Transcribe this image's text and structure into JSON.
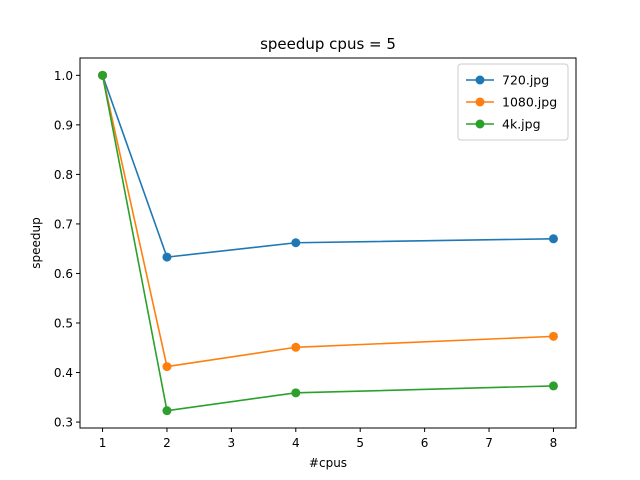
{
  "chart_data": {
    "type": "line",
    "title": "speedup cpus = 5",
    "xlabel": "#cpus",
    "ylabel": "speedup",
    "x": [
      1,
      2,
      4,
      8
    ],
    "xlim": [
      0.65,
      8.35
    ],
    "ylim": [
      0.288,
      1.035
    ],
    "xticks": [
      1,
      2,
      3,
      4,
      5,
      6,
      7,
      8
    ],
    "yticks": [
      0.3,
      0.4,
      0.5,
      0.6,
      0.7,
      0.8,
      0.9,
      1.0
    ],
    "ytick_labels": [
      "0.3",
      "0.4",
      "0.5",
      "0.6",
      "0.7",
      "0.8",
      "0.9",
      "1.0"
    ],
    "grid": false,
    "legend_position": "top-right",
    "series": [
      {
        "name": "720.jpg",
        "color": "#1f77b4",
        "values": [
          1.0,
          0.633,
          0.662,
          0.67
        ]
      },
      {
        "name": "1080.jpg",
        "color": "#ff7f0e",
        "values": [
          1.0,
          0.412,
          0.451,
          0.473
        ]
      },
      {
        "name": "4k.jpg",
        "color": "#2ca02c",
        "values": [
          1.0,
          0.323,
          0.359,
          0.373
        ]
      }
    ]
  }
}
